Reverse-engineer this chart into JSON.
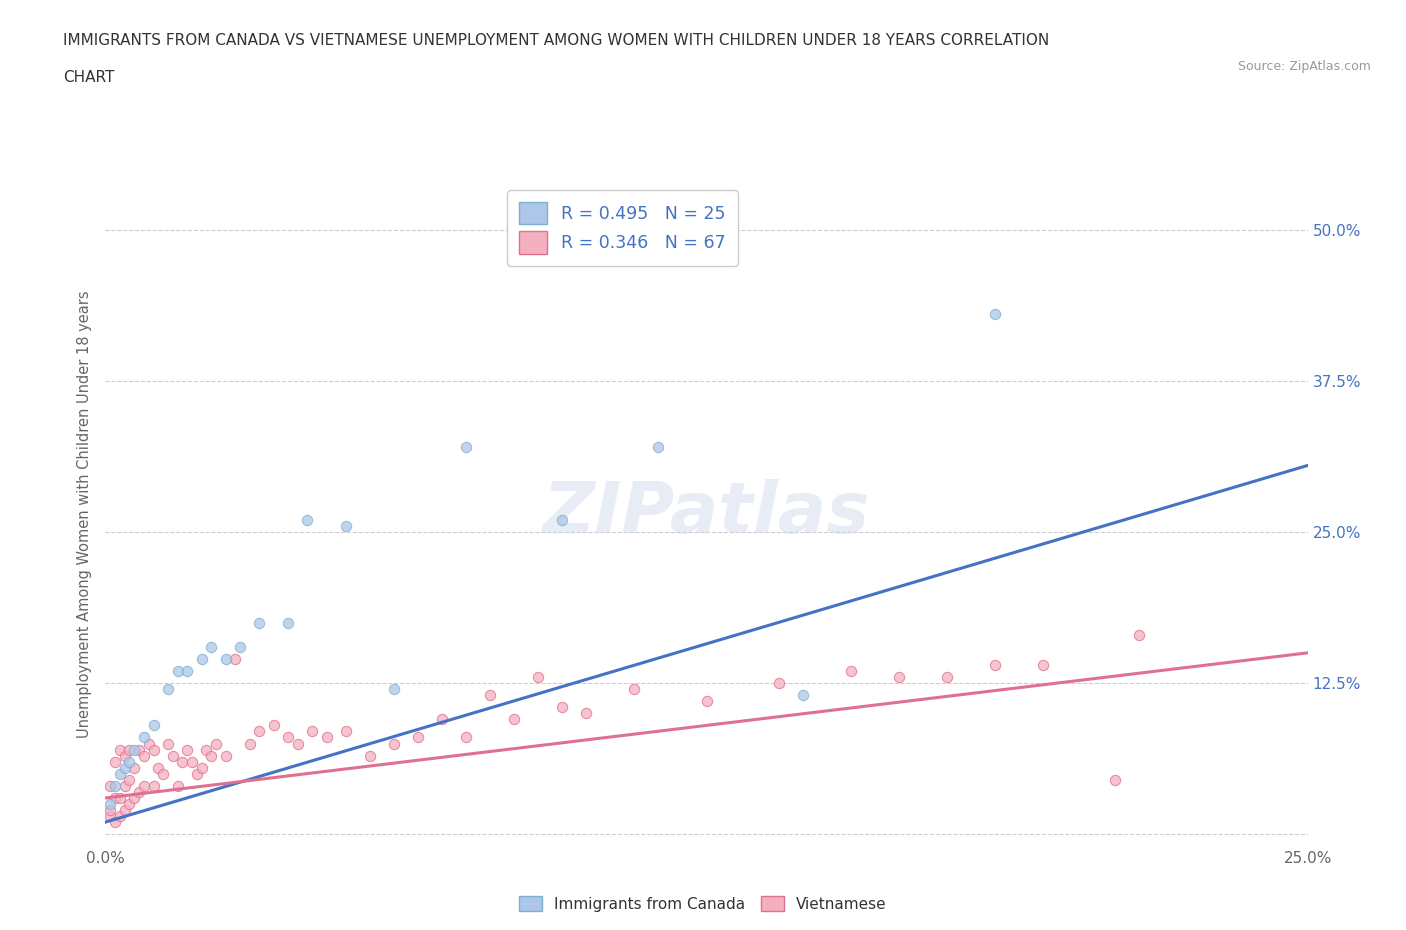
{
  "title_line1": "IMMIGRANTS FROM CANADA VS VIETNAMESE UNEMPLOYMENT AMONG WOMEN WITH CHILDREN UNDER 18 YEARS CORRELATION",
  "title_line2": "CHART",
  "source": "Source: ZipAtlas.com",
  "ylabel": "Unemployment Among Women with Children Under 18 years",
  "xlim": [
    0.0,
    0.25
  ],
  "ylim": [
    -0.01,
    0.54
  ],
  "xticks": [
    0.0,
    0.025,
    0.05,
    0.075,
    0.1,
    0.125,
    0.15,
    0.175,
    0.2,
    0.225,
    0.25
  ],
  "xtick_labels": [
    "0.0%",
    "",
    "",
    "",
    "",
    "",
    "",
    "",
    "",
    "",
    "25.0%"
  ],
  "ytick_positions": [
    0.0,
    0.125,
    0.25,
    0.375,
    0.5
  ],
  "ytick_labels": [
    "",
    "12.5%",
    "25.0%",
    "37.5%",
    "50.0%"
  ],
  "grid_color": "#cccccc",
  "background_color": "#ffffff",
  "canada_color": "#aec6e8",
  "canada_edge_color": "#7bafd4",
  "vietnamese_color": "#f4b0c0",
  "vietnamese_edge_color": "#e07090",
  "canada_R": 0.495,
  "canada_N": 25,
  "vietnamese_R": 0.346,
  "vietnamese_N": 67,
  "canada_line_color": "#4472c4",
  "vietnamese_line_color": "#e07090",
  "canada_line_x": [
    0.0,
    0.25
  ],
  "canada_line_y": [
    0.01,
    0.305
  ],
  "vietnamese_line_x": [
    0.0,
    0.25
  ],
  "vietnamese_line_y": [
    0.03,
    0.15
  ],
  "canada_scatter_x": [
    0.001,
    0.002,
    0.003,
    0.004,
    0.005,
    0.006,
    0.008,
    0.01,
    0.013,
    0.015,
    0.017,
    0.02,
    0.022,
    0.025,
    0.028,
    0.032,
    0.038,
    0.042,
    0.05,
    0.06,
    0.075,
    0.095,
    0.115,
    0.145,
    0.185
  ],
  "canada_scatter_y": [
    0.025,
    0.04,
    0.05,
    0.055,
    0.06,
    0.07,
    0.08,
    0.09,
    0.12,
    0.135,
    0.135,
    0.145,
    0.155,
    0.145,
    0.155,
    0.175,
    0.175,
    0.26,
    0.255,
    0.12,
    0.32,
    0.26,
    0.32,
    0.115,
    0.43
  ],
  "vietnamese_scatter_x": [
    0.001,
    0.001,
    0.001,
    0.002,
    0.002,
    0.002,
    0.003,
    0.003,
    0.003,
    0.004,
    0.004,
    0.004,
    0.005,
    0.005,
    0.005,
    0.006,
    0.006,
    0.007,
    0.007,
    0.008,
    0.008,
    0.009,
    0.01,
    0.01,
    0.011,
    0.012,
    0.013,
    0.014,
    0.015,
    0.016,
    0.017,
    0.018,
    0.019,
    0.02,
    0.021,
    0.022,
    0.023,
    0.025,
    0.027,
    0.03,
    0.032,
    0.035,
    0.038,
    0.04,
    0.043,
    0.046,
    0.05,
    0.055,
    0.06,
    0.065,
    0.07,
    0.075,
    0.08,
    0.085,
    0.09,
    0.095,
    0.1,
    0.11,
    0.125,
    0.14,
    0.155,
    0.165,
    0.175,
    0.185,
    0.195,
    0.21,
    0.215
  ],
  "vietnamese_scatter_y": [
    0.015,
    0.02,
    0.04,
    0.01,
    0.03,
    0.06,
    0.015,
    0.03,
    0.07,
    0.02,
    0.04,
    0.065,
    0.025,
    0.045,
    0.07,
    0.03,
    0.055,
    0.035,
    0.07,
    0.04,
    0.065,
    0.075,
    0.04,
    0.07,
    0.055,
    0.05,
    0.075,
    0.065,
    0.04,
    0.06,
    0.07,
    0.06,
    0.05,
    0.055,
    0.07,
    0.065,
    0.075,
    0.065,
    0.145,
    0.075,
    0.085,
    0.09,
    0.08,
    0.075,
    0.085,
    0.08,
    0.085,
    0.065,
    0.075,
    0.08,
    0.095,
    0.08,
    0.115,
    0.095,
    0.13,
    0.105,
    0.1,
    0.12,
    0.11,
    0.125,
    0.135,
    0.13,
    0.13,
    0.14,
    0.14,
    0.045,
    0.165
  ],
  "legend_label_canada": "R = 0.495   N = 25",
  "legend_label_vietnamese": "R = 0.346   N = 67",
  "marker_size": 55,
  "marker_alpha": 0.75
}
